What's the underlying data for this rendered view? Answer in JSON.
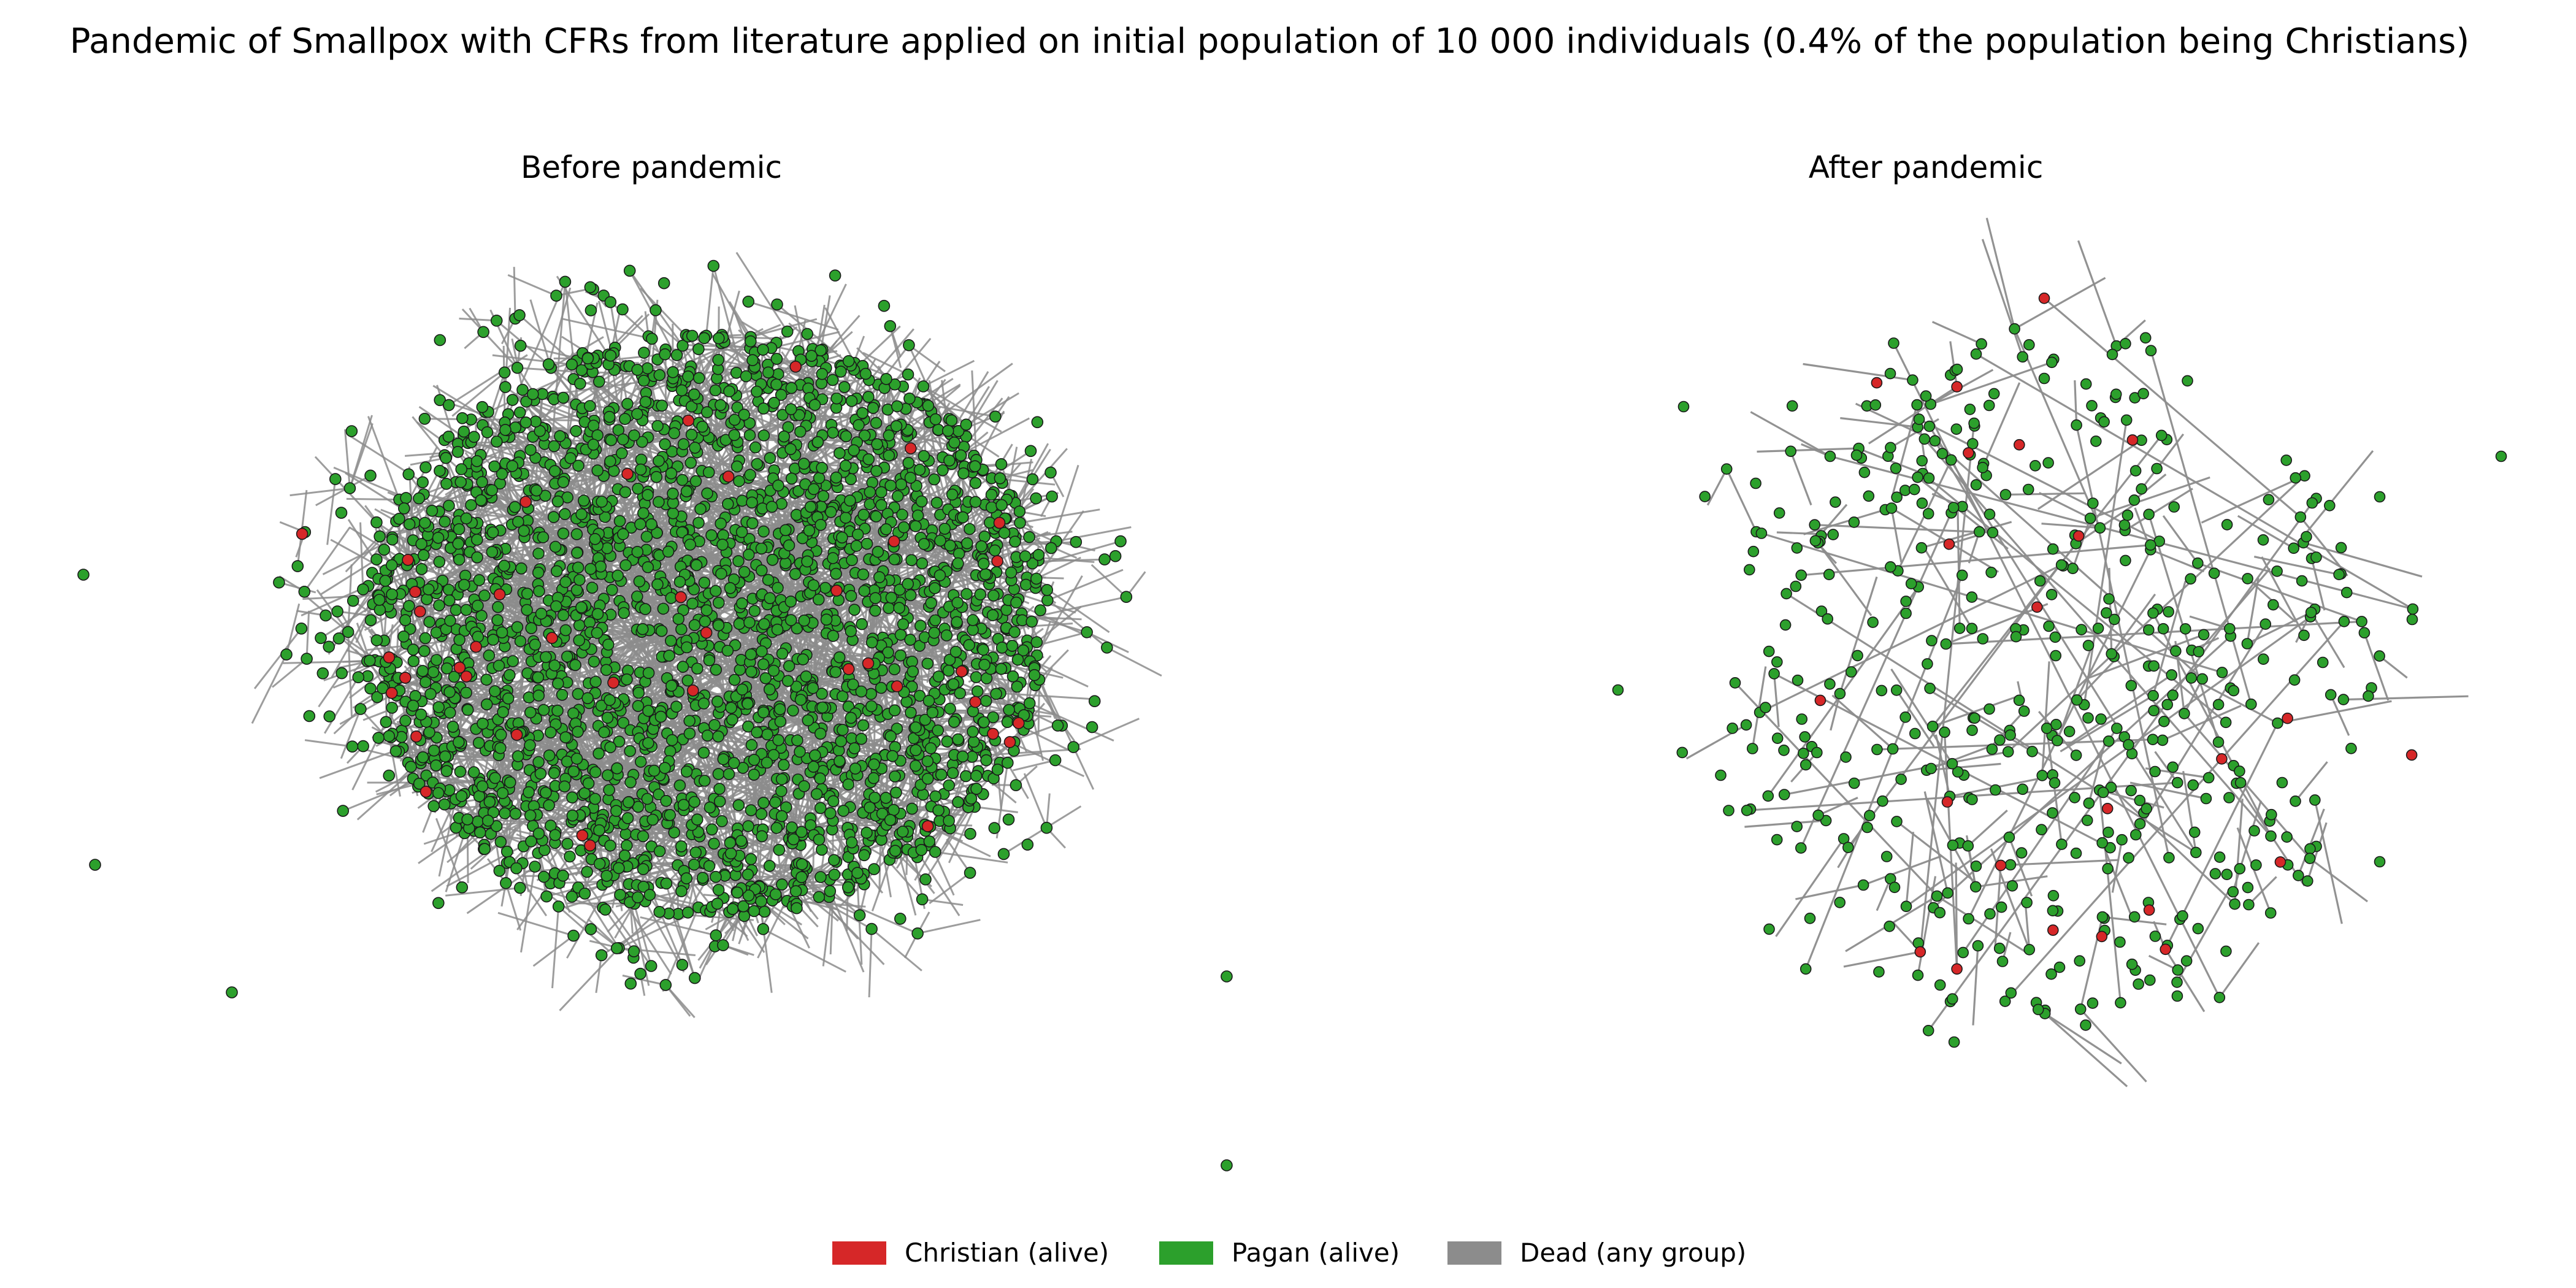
{
  "chart_data": {
    "type": "network",
    "title": "Pandemic of Smallpox with CFRs from literature applied on initial population of 10 000 individuals (0.4% of the population being Christians)",
    "panels": [
      {
        "title": "Before pandemic",
        "node_groups": {
          "christian_alive": "many",
          "pagan_alive": "very many",
          "dead": "none shown"
        }
      },
      {
        "title": "After pandemic",
        "node_groups": {
          "christian_alive": "few",
          "pagan_alive": "hundreds",
          "dead": "not drawn"
        }
      }
    ],
    "legend": {
      "position": "bottom-center",
      "items": [
        {
          "label": "Christian (alive)",
          "color": "#d62728"
        },
        {
          "label": "Pagan (alive)",
          "color": "#2ca02c"
        },
        {
          "label": "Dead (any group)",
          "color": "#8c8c8c"
        }
      ]
    },
    "edge_color": "#8c8c8c",
    "node_edge_color": "#1a1a1a"
  }
}
